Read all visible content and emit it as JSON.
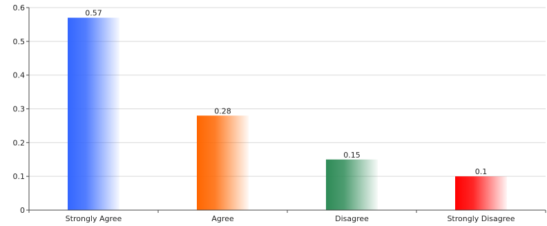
{
  "chart_data": {
    "type": "bar",
    "title": "",
    "xlabel": "",
    "ylabel": "",
    "categories": [
      "Strongly Agree",
      "Agree",
      "Disagree",
      "Strongly Disagree"
    ],
    "values": [
      0.57,
      0.28,
      0.15,
      0.1
    ],
    "value_labels": [
      "0.57",
      "0.28",
      "0.15",
      "0.1"
    ],
    "ylim": [
      0,
      0.6
    ],
    "yticks": [
      0,
      0.1,
      0.2,
      0.3,
      0.4,
      0.5,
      0.6
    ],
    "ytick_labels": [
      "0",
      "0.1",
      "0.2",
      "0.3",
      "0.4",
      "0.5",
      "0.6"
    ],
    "grid": true,
    "legend": "none",
    "colors": [
      "#3366ff",
      "#ff6600",
      "#2e8b57",
      "#ff0000"
    ]
  }
}
